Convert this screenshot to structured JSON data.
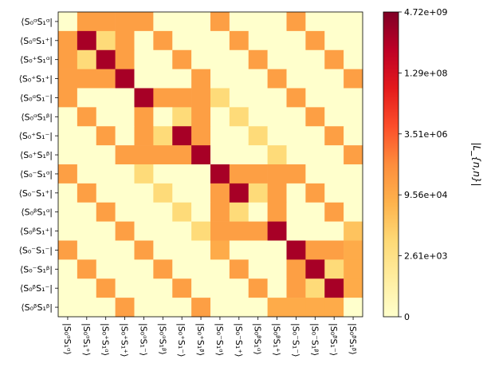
{
  "chart_data": {
    "type": "heatmap",
    "colormap": "YlOrRd",
    "colorbar": {
      "label": "|L_{n,n}|",
      "tick_labels": [
        "0",
        "2.61e+03",
        "9.56e+04",
        "3.51e+06",
        "1.29e+08",
        "4.72e+09"
      ]
    },
    "row_labels": [
      "⟨S₀ᵅS₁ᵅ|",
      "⟨S₀ᵅS₁⁺|",
      "⟨S₀⁺S₁ᵅ|",
      "⟨S₀⁺S₁⁺|",
      "⟨S₀ᵅS₁⁻|",
      "⟨S₀ᵅS₁ᵝ|",
      "⟨S₀⁺S₁⁻|",
      "⟨S₀⁺S₁ᵝ|",
      "⟨S₀⁻S₁ᵅ|",
      "⟨S₀⁻S₁⁺|",
      "⟨S₀ᵝS₁ᵅ|",
      "⟨S₀ᵝS₁⁺|",
      "⟨S₀⁻S₁⁻|",
      "⟨S₀⁻S₁ᵝ|",
      "⟨S₀ᵝS₁⁻|",
      "⟨S₀ᵝS₁ᵝ|"
    ],
    "col_labels": [
      "|S₀ᵅS₁ᵅ⟩",
      "|S₀ᵅS₁⁺⟩",
      "|S₀⁺S₁ᵅ⟩",
      "|S₀⁺S₁⁺⟩",
      "|S₀ᵅS₁⁻⟩",
      "|S₀ᵅS₁ᵝ⟩",
      "|S₀⁺S₁⁻⟩",
      "|S₀⁺S₁ᵝ⟩",
      "|S₀⁻S₁ᵅ⟩",
      "|S₀⁻S₁⁺⟩",
      "|S₀ᵝS₁ᵅ⟩",
      "|S₀ᵝS₁⁺⟩",
      "|S₀⁻S₁⁻⟩",
      "|S₀⁻S₁ᵝ⟩",
      "|S₀ᵝS₁⁻⟩",
      "|S₀ᵝS₁ᵝ⟩"
    ],
    "level_scale": "0 = zero, 1 ≈ 2.6e+03, 2 ≈ 9.6e+04, 3 ≈ 3.5e+06, 4 ≈ 1.3e+08, 5 = 4.72e+09 (colorbar position)",
    "matrix_level": [
      [
        0,
        2.2,
        2.2,
        2.2,
        2.2,
        0,
        0,
        0,
        2.2,
        0,
        0,
        0,
        2.2,
        0,
        0,
        0
      ],
      [
        2.2,
        4.6,
        1.2,
        2.2,
        0,
        2.2,
        0,
        0,
        0,
        2.2,
        0,
        0,
        0,
        2.2,
        0,
        0
      ],
      [
        2.2,
        1.2,
        4.6,
        2.2,
        0,
        0,
        2.2,
        0,
        0,
        0,
        2.2,
        0,
        0,
        0,
        2.2,
        0
      ],
      [
        2.2,
        2.2,
        2.2,
        4.6,
        0,
        0,
        0,
        2.2,
        0,
        0,
        0,
        2.2,
        0,
        0,
        0,
        2.2
      ],
      [
        2.2,
        0,
        0,
        0,
        4.6,
        2.2,
        2.2,
        2.2,
        1.2,
        0,
        0,
        0,
        2.2,
        0,
        0,
        0
      ],
      [
        0,
        2.2,
        0,
        0,
        2.2,
        0,
        1.2,
        2.2,
        0,
        1.2,
        0,
        0,
        0,
        2.2,
        0,
        0
      ],
      [
        0,
        0,
        2.2,
        0,
        2.2,
        1.2,
        4.6,
        2.2,
        0,
        0,
        1.2,
        0,
        0,
        0,
        2.2,
        0
      ],
      [
        0,
        0,
        0,
        2.2,
        2.2,
        2.2,
        2.2,
        4.6,
        0,
        0,
        0,
        1.2,
        0,
        0,
        0,
        2.2
      ],
      [
        2.2,
        0,
        0,
        0,
        1.2,
        0,
        0,
        0,
        4.6,
        2.2,
        2.2,
        2.2,
        2.2,
        0,
        0,
        0
      ],
      [
        0,
        2.2,
        0,
        0,
        0,
        1.2,
        0,
        0,
        2.2,
        4.6,
        1.2,
        2.2,
        0,
        2.2,
        0,
        0
      ],
      [
        0,
        0,
        2.2,
        0,
        0,
        0,
        1.2,
        0,
        2.2,
        1.2,
        0,
        2.2,
        0,
        0,
        2.2,
        0
      ],
      [
        0,
        0,
        0,
        2.2,
        0,
        0,
        0,
        1.2,
        2.2,
        2.2,
        2.2,
        4.6,
        0,
        0,
        0,
        1.6
      ],
      [
        2.2,
        0,
        0,
        0,
        2.2,
        0,
        0,
        0,
        2.0,
        0,
        0,
        0,
        4.6,
        2.2,
        2.2,
        2.0
      ],
      [
        0,
        2.2,
        0,
        0,
        0,
        2.2,
        0,
        0,
        0,
        2.2,
        0,
        0,
        2.2,
        4.6,
        1.2,
        2.0
      ],
      [
        0,
        0,
        2.2,
        0,
        0,
        0,
        2.2,
        0,
        0,
        0,
        2.2,
        0,
        2.2,
        1.2,
        4.6,
        2.0
      ],
      [
        0,
        0,
        0,
        2.2,
        0,
        0,
        0,
        2.2,
        0,
        0,
        0,
        2.0,
        2.0,
        2.0,
        2.0,
        0
      ]
    ],
    "xlabel": "",
    "ylabel": "",
    "title": ""
  }
}
